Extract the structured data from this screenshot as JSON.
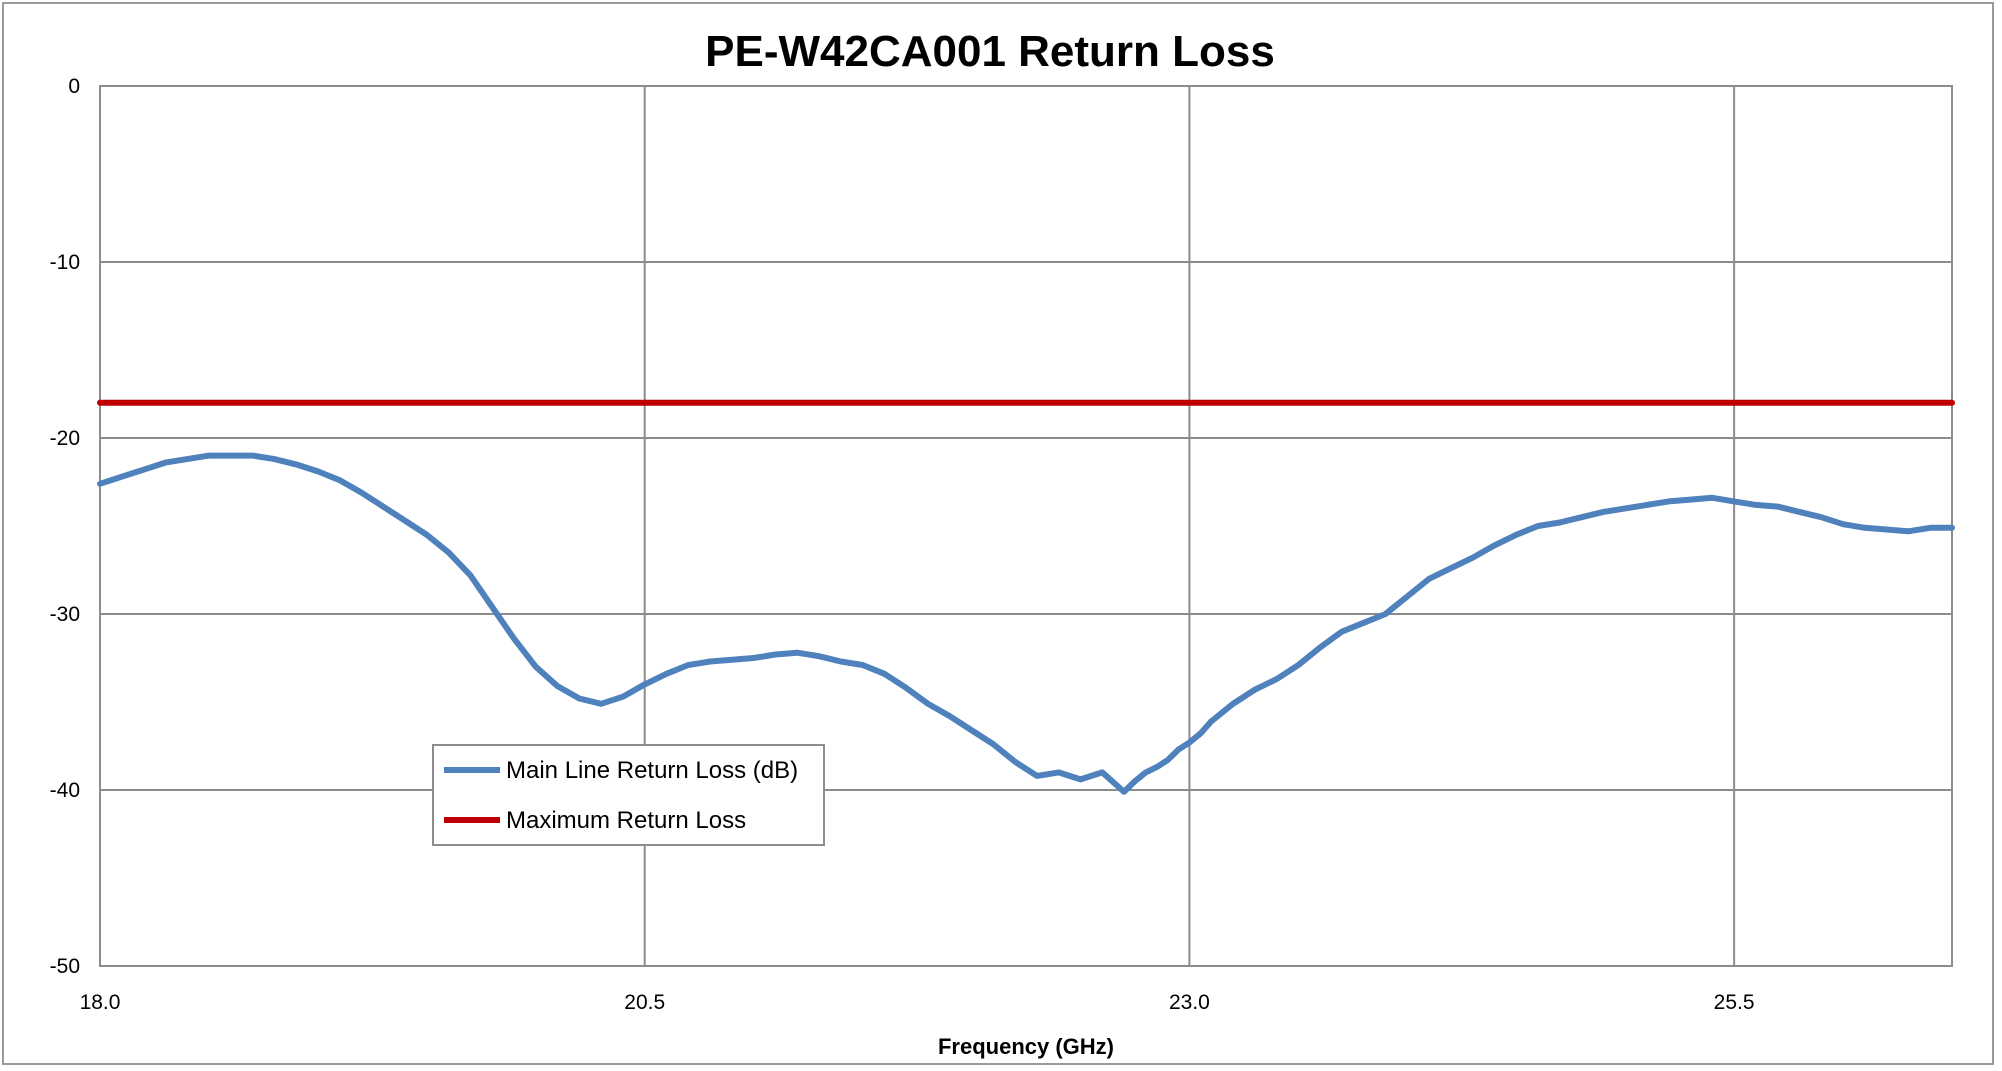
{
  "chart_data": {
    "type": "line",
    "title": "PE-W42CA001 Return Loss",
    "xlabel": "Frequency (GHz)",
    "ylabel": "",
    "xlim": [
      18.0,
      26.5
    ],
    "ylim": [
      -50,
      0
    ],
    "x_ticks": [
      {
        "value": 18.0,
        "label": "18.0"
      },
      {
        "value": 20.5,
        "label": "20.5"
      },
      {
        "value": 23.0,
        "label": "23.0"
      },
      {
        "value": 25.5,
        "label": "25.5"
      }
    ],
    "y_ticks": [
      {
        "value": 0,
        "label": "0"
      },
      {
        "value": -10,
        "label": "-10"
      },
      {
        "value": -20,
        "label": "-20"
      },
      {
        "value": -30,
        "label": "-30"
      },
      {
        "value": -40,
        "label": "-40"
      },
      {
        "value": -50,
        "label": "-50"
      }
    ],
    "grid": true,
    "legend_position": "lower-left",
    "series": [
      {
        "name": "Main Line Return Loss (dB)",
        "color": "#4F81BD",
        "x": [
          18.0,
          18.1,
          18.2,
          18.3,
          18.4,
          18.5,
          18.6,
          18.7,
          18.8,
          18.9,
          19.0,
          19.1,
          19.2,
          19.3,
          19.4,
          19.5,
          19.6,
          19.7,
          19.8,
          19.9,
          20.0,
          20.1,
          20.2,
          20.3,
          20.4,
          20.5,
          20.6,
          20.7,
          20.75,
          20.8,
          20.9,
          21.0,
          21.1,
          21.2,
          21.3,
          21.4,
          21.5,
          21.6,
          21.7,
          21.8,
          21.9,
          22.0,
          22.1,
          22.2,
          22.3,
          22.4,
          22.5,
          22.6,
          22.7,
          22.75,
          22.8,
          22.85,
          22.9,
          22.95,
          23.0,
          23.05,
          23.1,
          23.2,
          23.3,
          23.4,
          23.5,
          23.6,
          23.7,
          23.8,
          23.9,
          24.0,
          24.1,
          24.2,
          24.3,
          24.4,
          24.5,
          24.6,
          24.7,
          24.8,
          24.9,
          25.0,
          25.1,
          25.2,
          25.3,
          25.4,
          25.5,
          25.6,
          25.7,
          25.8,
          25.9,
          26.0,
          26.1,
          26.2,
          26.3,
          26.4,
          26.5
        ],
        "y": [
          -22.6,
          -22.2,
          -21.8,
          -21.4,
          -21.2,
          -21.0,
          -21.0,
          -21.0,
          -21.2,
          -21.5,
          -21.9,
          -22.4,
          -23.1,
          -23.9,
          -24.7,
          -25.5,
          -26.5,
          -27.8,
          -29.6,
          -31.4,
          -33.0,
          -34.1,
          -34.8,
          -35.1,
          -34.7,
          -34.0,
          -33.4,
          -32.9,
          -32.8,
          -32.7,
          -32.6,
          -32.5,
          -32.3,
          -32.2,
          -32.4,
          -32.7,
          -32.9,
          -33.4,
          -34.2,
          -35.1,
          -35.8,
          -36.6,
          -37.4,
          -38.4,
          -39.2,
          -39.0,
          -39.4,
          -39.0,
          -40.1,
          -39.5,
          -39.0,
          -38.7,
          -38.3,
          -37.7,
          -37.3,
          -36.8,
          -36.1,
          -35.1,
          -34.3,
          -33.7,
          -32.9,
          -31.9,
          -31.0,
          -30.5,
          -30.0,
          -29.0,
          -28.0,
          -27.4,
          -26.8,
          -26.1,
          -25.5,
          -25.0,
          -24.8,
          -24.5,
          -24.2,
          -24.0,
          -23.8,
          -23.6,
          -23.5,
          -23.4,
          -23.6,
          -23.8,
          -23.9,
          -24.2,
          -24.5,
          -24.9,
          -25.1,
          -25.2,
          -25.3,
          -25.1,
          -25.1
        ]
      },
      {
        "name": "Maximum Return Loss",
        "color": "#C00000",
        "x": [
          18.0,
          26.5
        ],
        "y": [
          -18.0,
          -18.0
        ]
      }
    ]
  }
}
